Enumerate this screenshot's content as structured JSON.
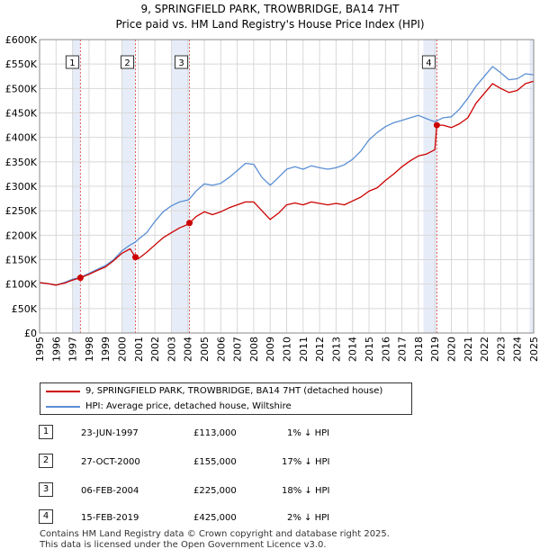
{
  "title_line1": "9, SPRINGFIELD PARK, TROWBRIDGE, BA14 7HT",
  "title_line2": "Price paid vs. HM Land Registry's House Price Index (HPI)",
  "colors": {
    "price": "#cc0000",
    "hpi": "#5b8fd4",
    "shade": "#dde6f5",
    "vline": "#e06060"
  },
  "legend": {
    "price_label": "9, SPRINGFIELD PARK, TROWBRIDGE, BA14 7HT (detached house)",
    "hpi_label": "HPI: Average price, detached house, Wiltshire"
  },
  "sales": [
    {
      "num": "1",
      "date": "23-JUN-1997",
      "price": "£113,000",
      "hpi": "1% ↓ HPI"
    },
    {
      "num": "2",
      "date": "27-OCT-2000",
      "price": "£155,000",
      "hpi": "17% ↓ HPI"
    },
    {
      "num": "3",
      "date": "06-FEB-2004",
      "price": "£225,000",
      "hpi": "18% ↓ HPI"
    },
    {
      "num": "4",
      "date": "15-FEB-2019",
      "price": "£425,000",
      "hpi": "2% ↓ HPI"
    }
  ],
  "footer_line1": "Contains HM Land Registry data © Crown copyright and database right 2025.",
  "footer_line2": "This data is licensed under the Open Government Licence v3.0.",
  "chart_data": {
    "type": "line",
    "title": "9, SPRINGFIELD PARK, TROWBRIDGE, BA14 7HT",
    "subtitle": "Price paid vs. HM Land Registry's House Price Index (HPI)",
    "xlim": [
      1995,
      2025
    ],
    "ylim": [
      0,
      600000
    ],
    "x_ticks": [
      1995,
      1996,
      1997,
      1998,
      1999,
      2000,
      2001,
      2002,
      2003,
      2004,
      2005,
      2006,
      2007,
      2008,
      2009,
      2010,
      2011,
      2012,
      2013,
      2014,
      2015,
      2016,
      2017,
      2018,
      2019,
      2020,
      2021,
      2022,
      2023,
      2024,
      2025
    ],
    "y_ticks": [
      0,
      50000,
      100000,
      150000,
      200000,
      250000,
      300000,
      350000,
      400000,
      450000,
      500000,
      550000,
      600000
    ],
    "y_tick_labels": [
      "£0",
      "£50K",
      "£100K",
      "£150K",
      "£200K",
      "£250K",
      "£300K",
      "£350K",
      "£400K",
      "£450K",
      "£500K",
      "£550K",
      "£600K"
    ],
    "grid": true,
    "shaded_spans": [
      [
        1997.0,
        1997.48
      ],
      [
        2000.0,
        2000.82
      ],
      [
        2003.0,
        2004.1
      ],
      [
        2018.3,
        2019.12
      ],
      [
        2024.75,
        2025.0
      ]
    ],
    "transactions": [
      {
        "label": "1",
        "x": 1997.48,
        "y": 113000
      },
      {
        "label": "2",
        "x": 2000.82,
        "y": 155000
      },
      {
        "label": "3",
        "x": 2004.1,
        "y": 225000
      },
      {
        "label": "4",
        "x": 2019.12,
        "y": 425000
      }
    ],
    "series": [
      {
        "name": "9, SPRINGFIELD PARK, TROWBRIDGE, BA14 7HT (detached house)",
        "x": [
          1995,
          1995.5,
          1996,
          1996.5,
          1997,
          1997.48,
          1998,
          1998.5,
          1999,
          1999.5,
          2000,
          2000.5,
          2000.82,
          2001,
          2001.5,
          2002,
          2002.5,
          2003,
          2003.5,
          2004,
          2004.1,
          2004.5,
          2005,
          2005.5,
          2006,
          2006.5,
          2007,
          2007.5,
          2008,
          2008.5,
          2009,
          2009.5,
          2010,
          2010.5,
          2011,
          2011.5,
          2012,
          2012.5,
          2013,
          2013.5,
          2014,
          2014.5,
          2015,
          2015.5,
          2016,
          2016.5,
          2017,
          2017.5,
          2018,
          2018.5,
          2019,
          2019.12,
          2019.5,
          2020,
          2020.5,
          2021,
          2021.5,
          2022,
          2022.5,
          2023,
          2023.5,
          2024,
          2024.5,
          2025
        ],
        "values": [
          103000,
          101000,
          98000,
          102000,
          108000,
          113000,
          120000,
          128000,
          135000,
          148000,
          163000,
          172000,
          155000,
          152000,
          165000,
          180000,
          195000,
          205000,
          215000,
          222000,
          225000,
          238000,
          248000,
          242000,
          248000,
          256000,
          262000,
          268000,
          268000,
          250000,
          232000,
          245000,
          262000,
          266000,
          262000,
          268000,
          265000,
          262000,
          265000,
          262000,
          270000,
          278000,
          290000,
          297000,
          312000,
          325000,
          340000,
          352000,
          362000,
          366000,
          375000,
          425000,
          425000,
          420000,
          428000,
          440000,
          470000,
          490000,
          510000,
          500000,
          492000,
          496000,
          510000,
          515000
        ]
      },
      {
        "name": "HPI: Average price, detached house, Wiltshire",
        "x": [
          1995,
          1995.5,
          1996,
          1996.5,
          1997,
          1997.48,
          1998,
          1998.5,
          1999,
          1999.5,
          2000,
          2000.5,
          2000.82,
          2001,
          2001.5,
          2002,
          2002.5,
          2003,
          2003.5,
          2004,
          2004.1,
          2004.5,
          2005,
          2005.5,
          2006,
          2006.5,
          2007,
          2007.5,
          2008,
          2008.5,
          2009,
          2009.5,
          2010,
          2010.5,
          2011,
          2011.5,
          2012,
          2012.5,
          2013,
          2013.5,
          2014,
          2014.5,
          2015,
          2015.5,
          2016,
          2016.5,
          2017,
          2017.5,
          2018,
          2018.5,
          2019,
          2019.12,
          2019.5,
          2020,
          2020.5,
          2021,
          2021.5,
          2022,
          2022.5,
          2023,
          2023.5,
          2024,
          2024.5,
          2025
        ],
        "values": [
          103000,
          101000,
          98000,
          103000,
          110000,
          114000,
          122000,
          130000,
          138000,
          150000,
          168000,
          180000,
          186000,
          192000,
          205000,
          228000,
          248000,
          260000,
          268000,
          272000,
          274000,
          290000,
          305000,
          302000,
          306000,
          318000,
          332000,
          347000,
          345000,
          318000,
          302000,
          318000,
          335000,
          340000,
          335000,
          342000,
          338000,
          335000,
          338000,
          344000,
          355000,
          372000,
          395000,
          410000,
          422000,
          430000,
          435000,
          440000,
          445000,
          438000,
          432000,
          434000,
          440000,
          442000,
          458000,
          480000,
          505000,
          525000,
          545000,
          532000,
          518000,
          520000,
          530000,
          528000
        ]
      }
    ]
  }
}
